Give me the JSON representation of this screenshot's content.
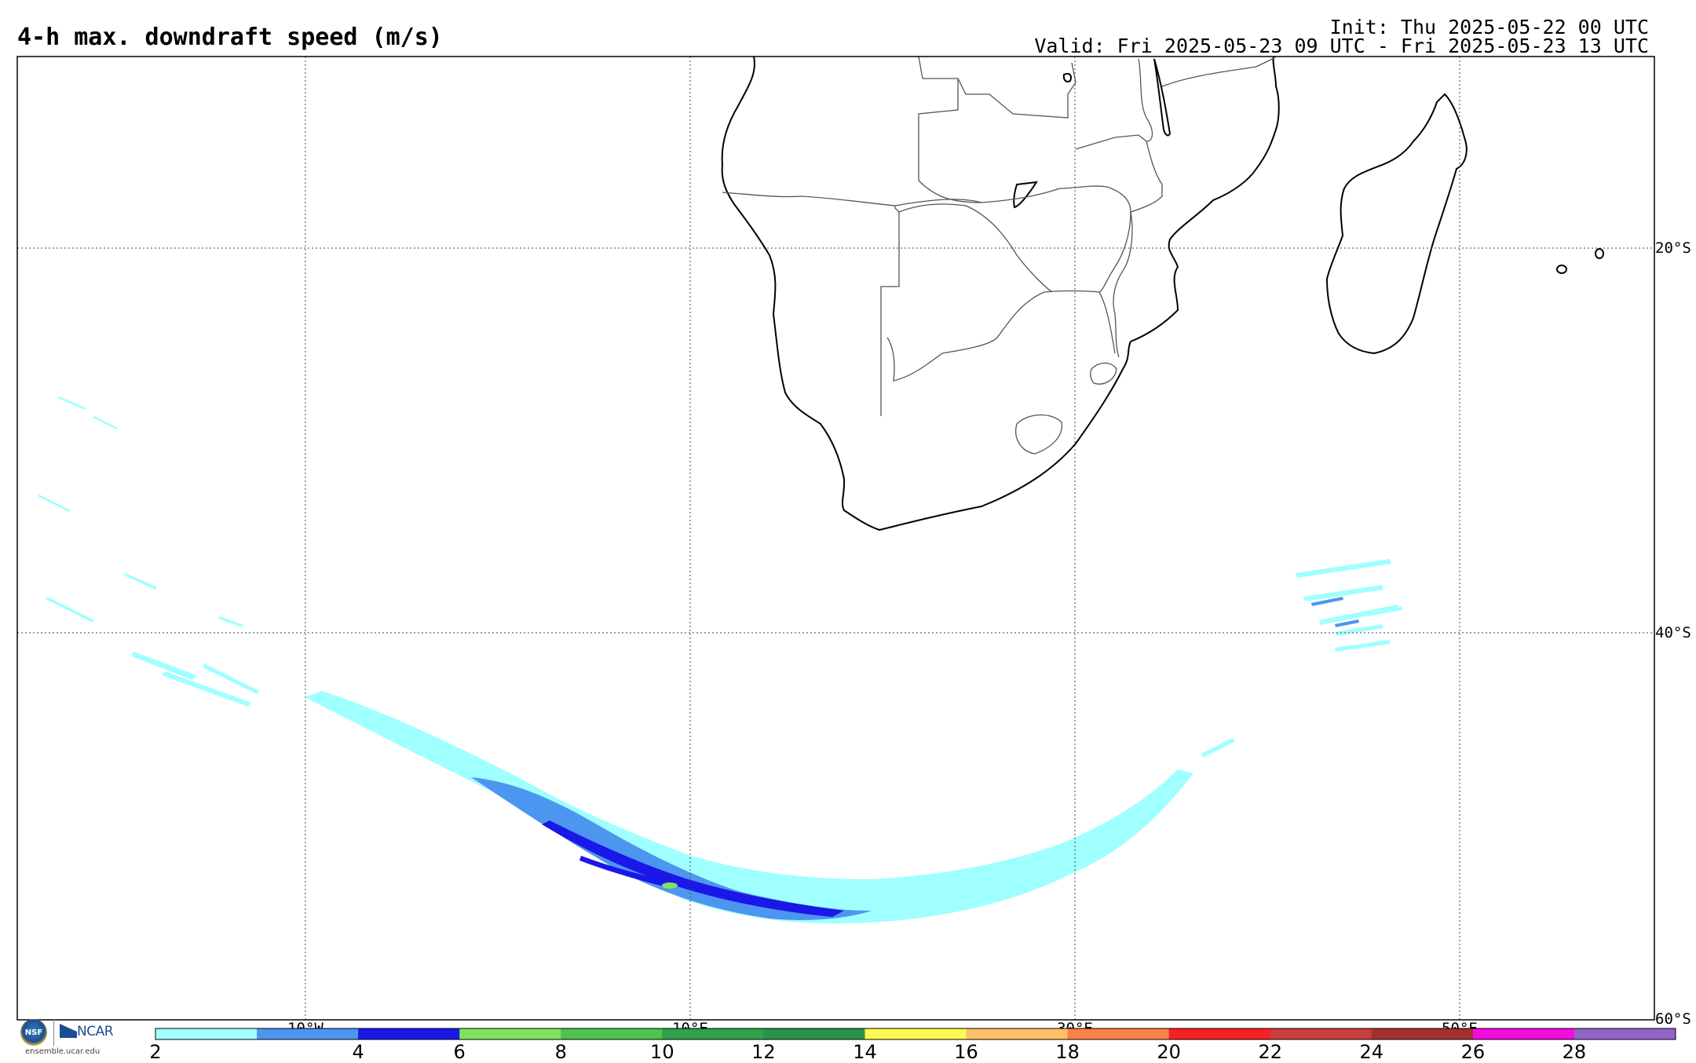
{
  "header": {
    "title": "4-h max. downdraft speed (m/s)",
    "init": "Init: Thu 2025-05-22 00 UTC",
    "valid": "Valid: Fri 2025-05-23 09 UTC - Fri 2025-05-23 13 UTC"
  },
  "map": {
    "region": "Southern Africa and South Atlantic / Indian Ocean",
    "lon_range": [
      -25,
      60
    ],
    "lat_range": [
      -60,
      -10
    ],
    "meridian_labels": [
      "10°W",
      "10°E",
      "30°E",
      "50°E"
    ],
    "parallel_labels": [
      "20°S",
      "40°S",
      "60°S"
    ],
    "field": "downdraft speed",
    "colors": {
      "coastline": "#000000",
      "border": "#555555",
      "grid": "#444444"
    }
  },
  "colorbar": {
    "tick_labels": [
      "2",
      "4",
      "6",
      "8",
      "10",
      "12",
      "14",
      "16",
      "18",
      "20",
      "22",
      "24",
      "26",
      "28"
    ],
    "first_label": "2",
    "bins": [
      "2-3",
      "3-4",
      "4-6",
      "6-8",
      "8-10",
      "10-12",
      "12-14",
      "14-16",
      "16-18",
      "18-20",
      "20-22",
      "22-24",
      "24-26",
      "26-28",
      "28+"
    ],
    "colors": [
      "#a0ffff",
      "#4d96f0",
      "#1c17e9",
      "#7de35a",
      "#4ec44e",
      "#2ea14a",
      "#27934a",
      "#fafa52",
      "#fdc064",
      "#fa8246",
      "#f72020",
      "#cc3c3c",
      "#a23030",
      "#f30be0",
      "#9264c8"
    ]
  },
  "logo": {
    "badge": "NSF",
    "org": "NCAR",
    "url": "ensemble.ucar.edu"
  }
}
